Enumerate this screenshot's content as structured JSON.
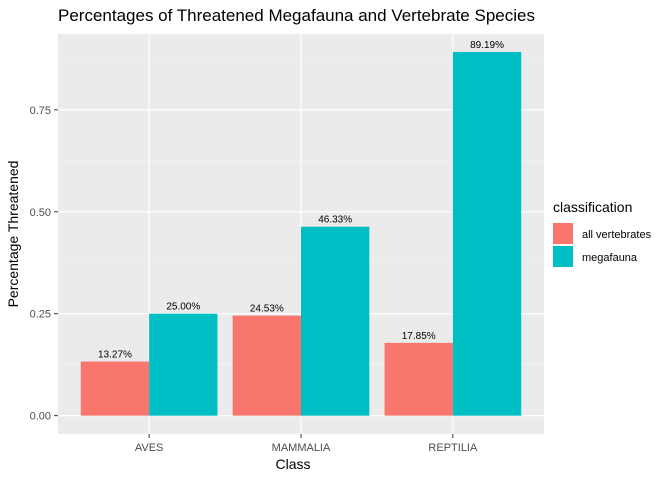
{
  "chart_data": {
    "type": "bar",
    "title": "Percentages of Threatened Megafauna and Vertebrate Species",
    "xlabel": "Class",
    "ylabel": "Percentage Threatened",
    "categories": [
      "AVES",
      "MAMMALIA",
      "REPTILIA"
    ],
    "series": [
      {
        "name": "all vertebrates",
        "color": "#F8766D",
        "values": [
          0.1327,
          0.2453,
          0.1785
        ],
        "labels": [
          "13.27%",
          "24.53%",
          "17.85%"
        ]
      },
      {
        "name": "megafauna",
        "color": "#00BFC4",
        "values": [
          0.25,
          0.4633,
          0.8919
        ],
        "labels": [
          "25.00%",
          "46.33%",
          "89.19%"
        ]
      }
    ],
    "ylim": [
      -0.045,
      0.936
    ],
    "yticks": [
      0.0,
      0.25,
      0.5,
      0.75
    ],
    "ytick_labels": [
      "0.00",
      "0.25",
      "0.50",
      "0.75"
    ],
    "grid": true,
    "legend": {
      "title": "classification",
      "position": "right"
    }
  }
}
